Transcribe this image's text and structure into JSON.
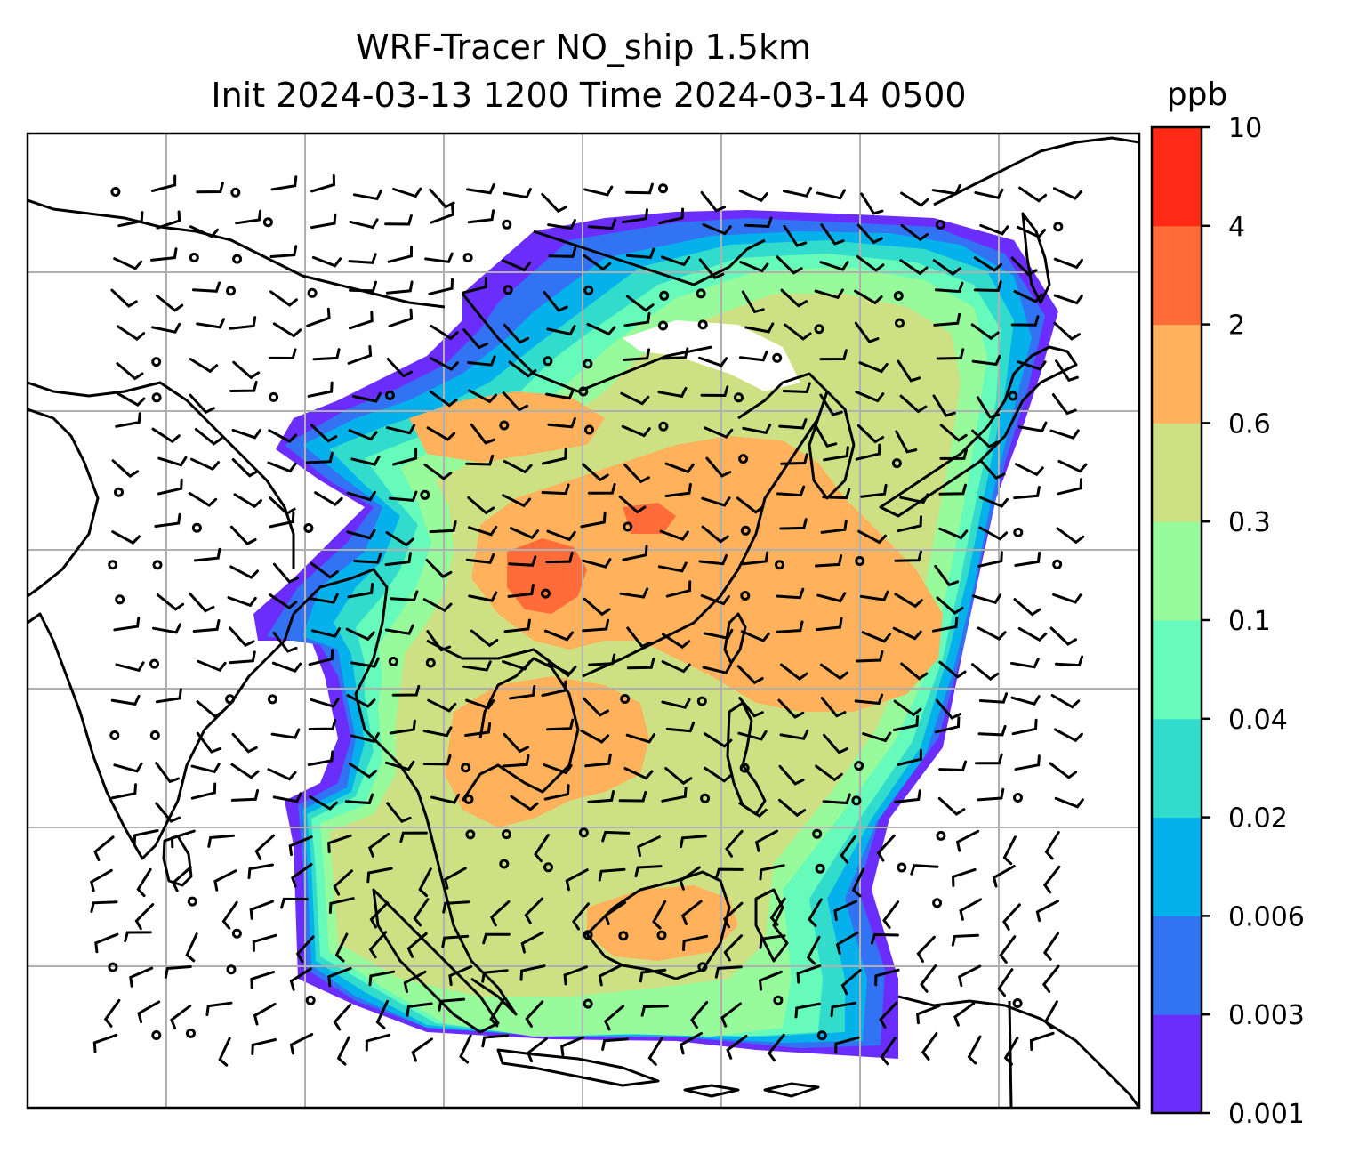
{
  "title_line1": "WRF-Tracer NO_ship 1.5km",
  "title_line2": "Init 2024-03-13 1200 Time 2024-03-14 0500",
  "colorbar": {
    "unit": "ppb",
    "levels": [
      "0.001",
      "0.003",
      "0.006",
      "0.02",
      "0.04",
      "0.1",
      "0.3",
      "0.6",
      "2",
      "4",
      "10"
    ],
    "colors": [
      "#6b2dfb",
      "#3173f3",
      "#04b1ea",
      "#32dccd",
      "#66fbbb",
      "#97fa9b",
      "#cde184",
      "#ffb15c",
      "#ff6c3a",
      "#ff2a15"
    ]
  },
  "map": {
    "gridlines": true,
    "overlays": [
      "NO_ship concentration (filled)",
      "coastlines",
      "country borders",
      "wind barbs"
    ]
  }
}
